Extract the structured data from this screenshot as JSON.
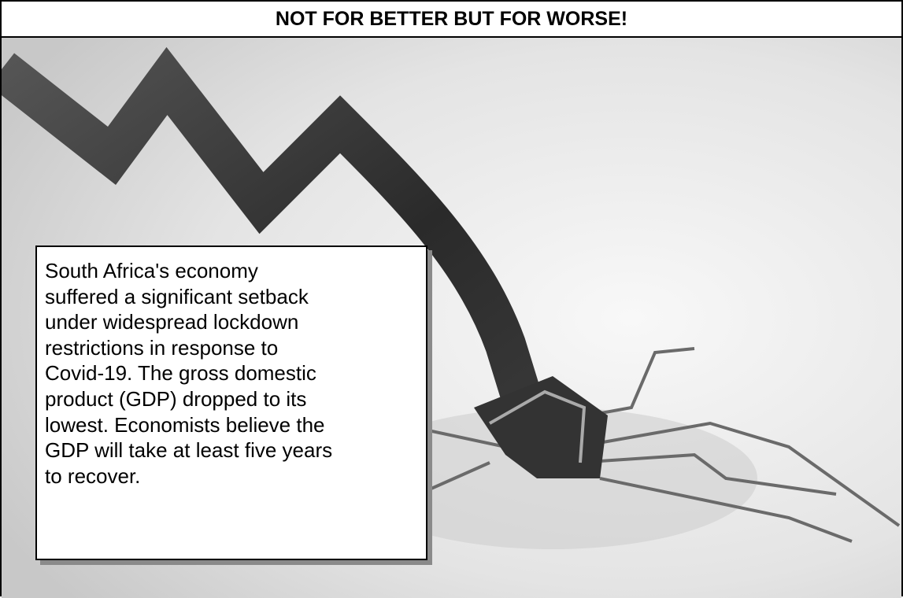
{
  "header": {
    "title": "NOT FOR BETTER BUT FOR WORSE!"
  },
  "text_box": {
    "lines": [
      "South Africa's economy",
      "suffered a significant setback",
      "under widespread lockdown",
      "restrictions in response to",
      "Covid-19. The gross domestic",
      "product (GDP) dropped to its",
      "lowest. Economists believe the",
      "GDP will take at least five years",
      "to recover."
    ]
  }
}
